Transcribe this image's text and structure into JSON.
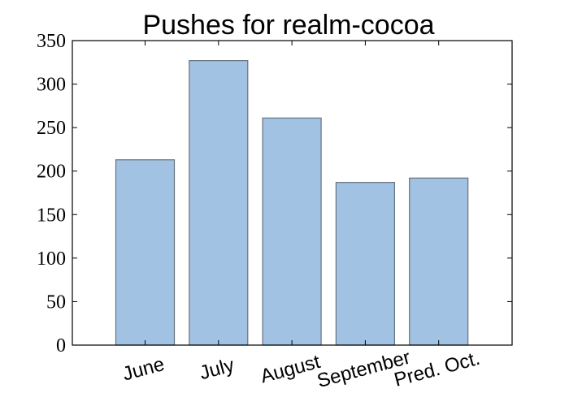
{
  "chart_data": {
    "type": "bar",
    "title": "Pushes for realm-cocoa",
    "xlabel": "",
    "ylabel": "",
    "categories": [
      "June",
      "July",
      "August",
      "September",
      "Pred. Oct."
    ],
    "values": [
      213,
      327,
      261,
      187,
      192
    ],
    "ylim": [
      0,
      350
    ],
    "yticks": [
      0,
      50,
      100,
      150,
      200,
      250,
      300,
      350
    ],
    "grid": false,
    "legend": "none",
    "x_tick_rotation_deg": 15
  },
  "colors": {
    "bar_fill": "#a1c2e3",
    "bar_edge": "#66727f",
    "axis": "#000000",
    "background": "#ffffff"
  }
}
